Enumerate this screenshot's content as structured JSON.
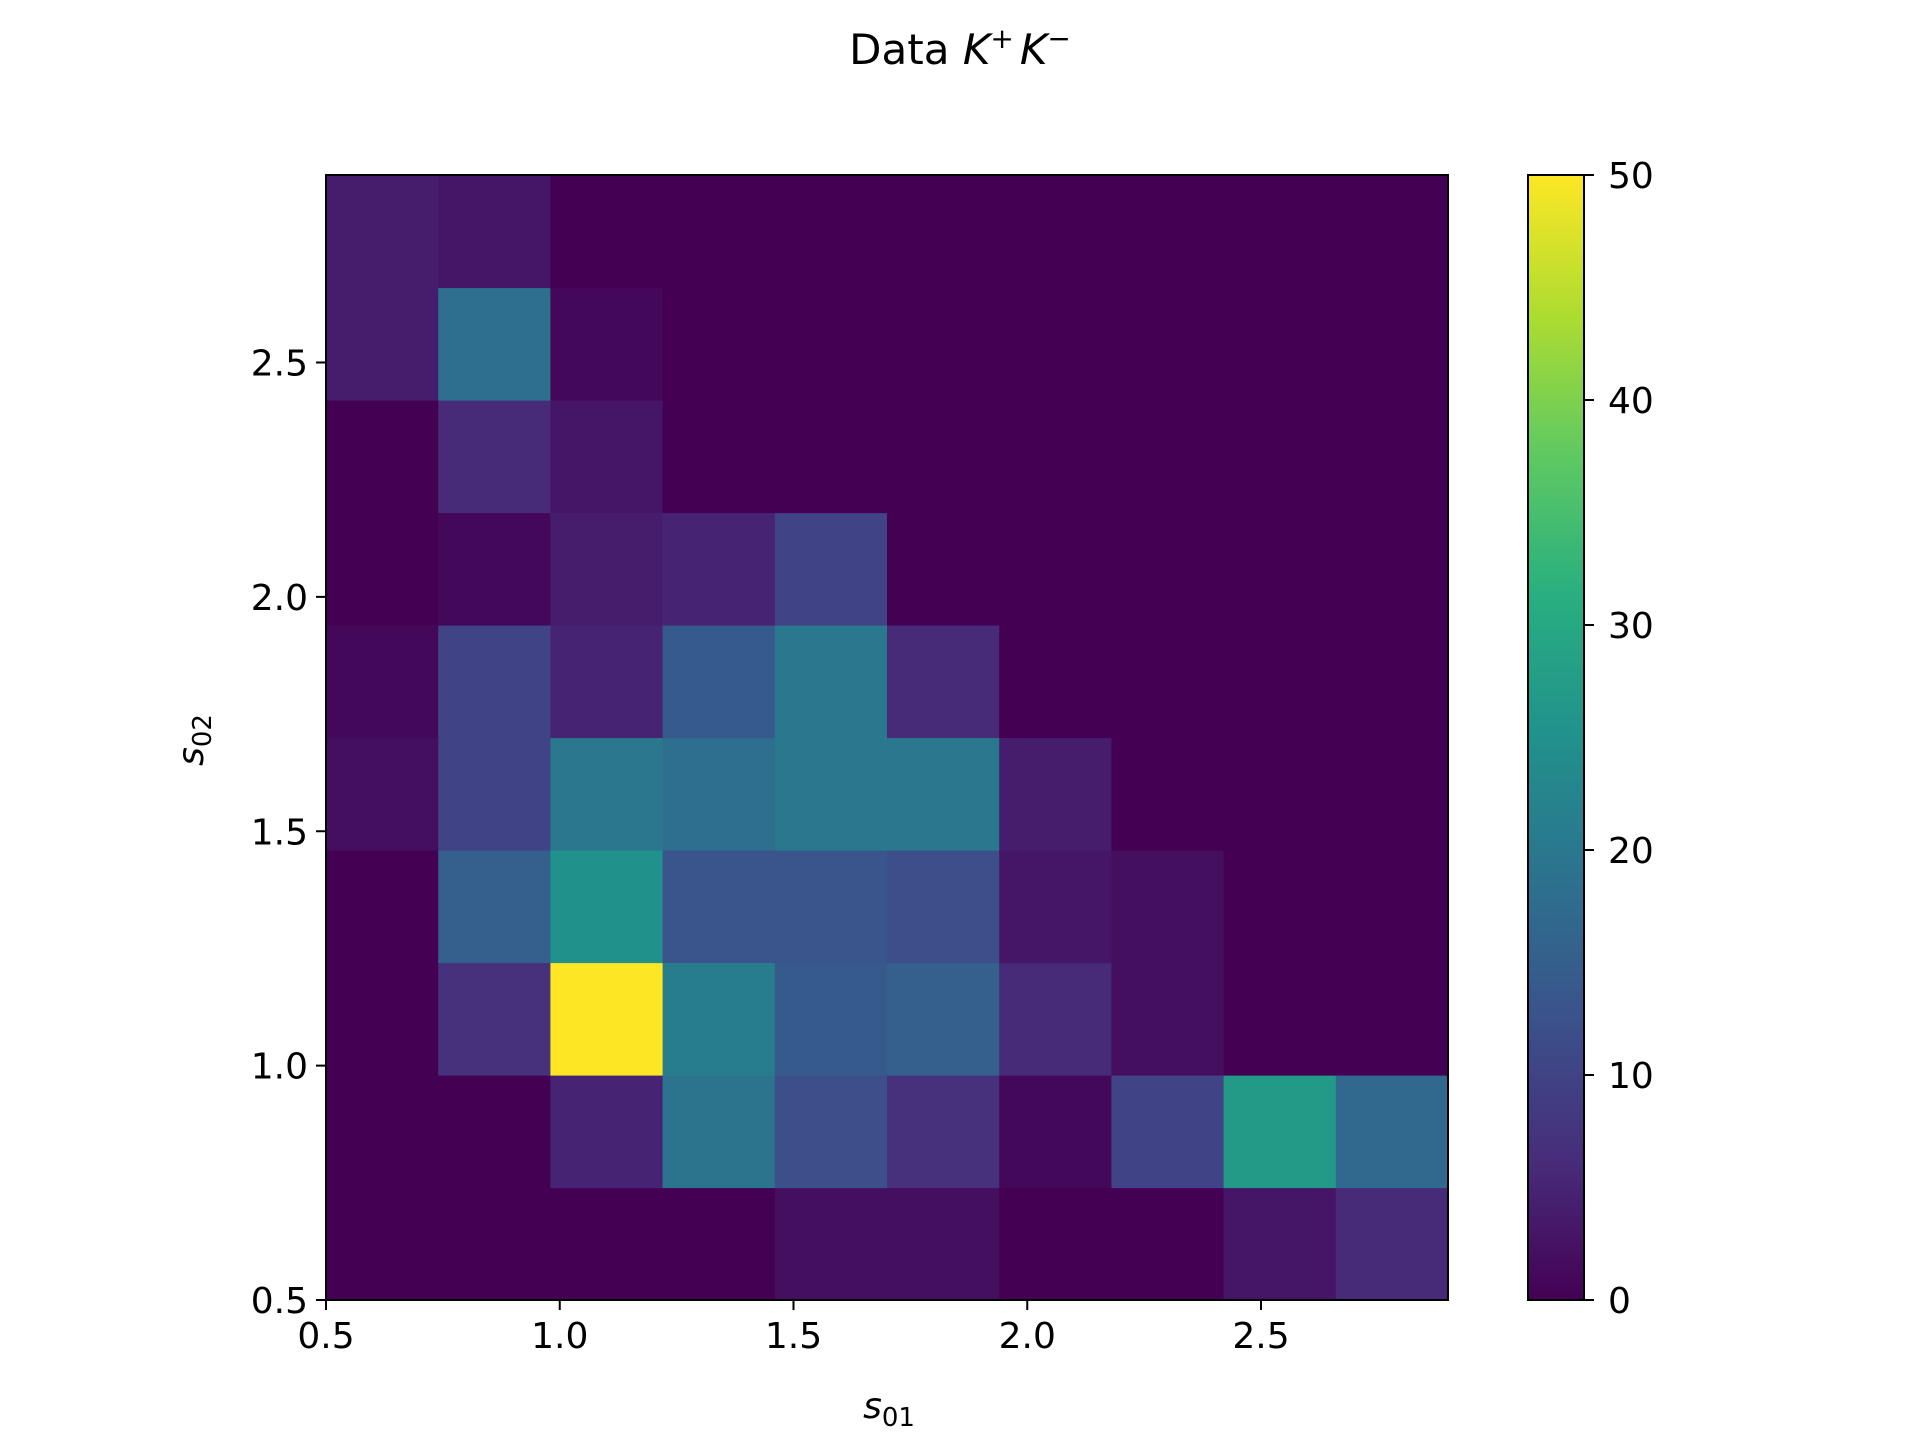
{
  "chart_data": {
    "type": "heatmap",
    "title": "Data",
    "title_math": [
      "K",
      "+",
      "K",
      "−"
    ],
    "xlabel": "s",
    "xlabel_sub": "01",
    "ylabel": "s",
    "ylabel_sub": "02",
    "xlim": [
      0.5,
      2.9
    ],
    "ylim": [
      0.5,
      2.9
    ],
    "x_bins": 10,
    "y_bins": 10,
    "xticks": [
      "0.5",
      "1.0",
      "1.5",
      "2.0",
      "2.5"
    ],
    "xtick_values": [
      0.5,
      1.0,
      1.5,
      2.0,
      2.5
    ],
    "yticks": [
      "0.5",
      "1.0",
      "1.5",
      "2.0",
      "2.5"
    ],
    "ytick_values": [
      0.5,
      1.0,
      1.5,
      2.0,
      2.5
    ],
    "colorbar": {
      "min": 0,
      "max": 50,
      "ticks": [
        "0",
        "10",
        "20",
        "30",
        "40",
        "50"
      ],
      "tick_values": [
        0,
        10,
        20,
        30,
        40,
        50
      ]
    },
    "values_rows_bottom_to_top": [
      [
        0,
        0,
        0,
        0,
        2,
        2,
        0,
        0,
        3,
        6
      ],
      [
        0,
        0,
        5,
        19,
        12,
        7,
        1,
        10,
        27,
        17
      ],
      [
        0,
        7,
        50,
        21,
        14,
        15,
        6,
        2,
        0,
        0
      ],
      [
        0,
        15,
        25,
        13,
        13,
        12,
        3,
        2,
        0,
        0
      ],
      [
        2,
        10,
        20,
        18,
        20,
        20,
        4,
        0,
        0,
        0
      ],
      [
        1,
        10,
        5,
        14,
        20,
        6,
        0,
        0,
        0,
        0
      ],
      [
        0,
        1,
        4,
        5,
        10,
        0,
        0,
        0,
        0,
        0
      ],
      [
        0,
        6,
        3,
        0,
        0,
        0,
        0,
        0,
        0,
        0
      ],
      [
        4,
        18,
        1,
        0,
        0,
        0,
        0,
        0,
        0,
        0
      ],
      [
        4,
        3,
        0,
        0,
        0,
        0,
        0,
        0,
        0,
        0
      ]
    ]
  }
}
